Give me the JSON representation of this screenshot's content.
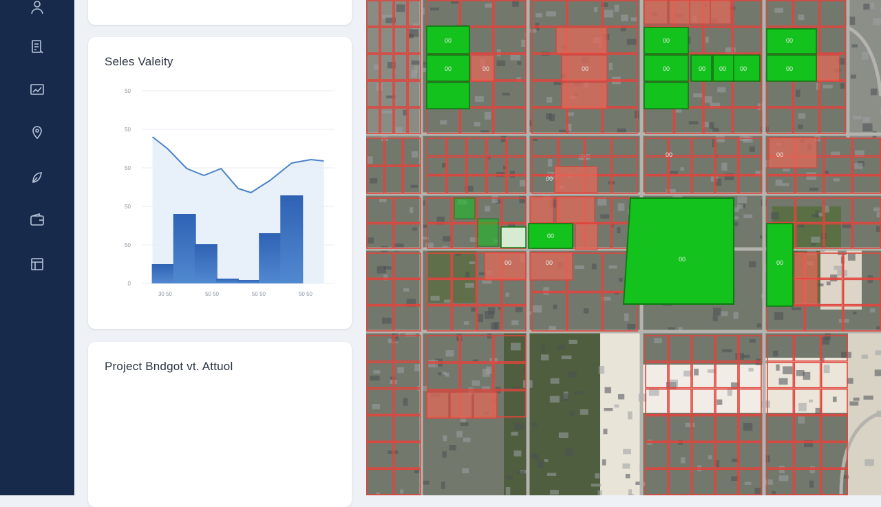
{
  "sidebar": {
    "items": [
      {
        "icon": "person-icon"
      },
      {
        "icon": "document-icon"
      },
      {
        "icon": "chart-icon"
      },
      {
        "icon": "pin-icon"
      },
      {
        "icon": "leaf-icon"
      },
      {
        "icon": "wallet-icon"
      },
      {
        "icon": "grid-icon"
      }
    ],
    "colors": {
      "background": "#172a4b",
      "icon": "#b8c6da"
    }
  },
  "cards": {
    "velocity": {
      "title": "Seles Valeity"
    },
    "budget": {
      "title": "Project Bndgot vt. Attuol"
    }
  },
  "chart_data": {
    "type": "bar",
    "title": "Seles Valeity",
    "y_tick_labels": [
      "0",
      "50",
      "50",
      "50",
      "50",
      "50"
    ],
    "x_tick_labels": [
      "30 50",
      "50 50",
      "50 50",
      "50 50"
    ],
    "bars": [
      {
        "x": 1,
        "value": 28
      },
      {
        "x": 2,
        "value": 101
      },
      {
        "x": 3,
        "value": 57
      },
      {
        "x": 4,
        "value": 7
      },
      {
        "x": 5,
        "value": 5
      },
      {
        "x": 6,
        "value": 73
      },
      {
        "x": 7,
        "value": 128
      }
    ],
    "line": [
      {
        "x": 0.5,
        "value": 213
      },
      {
        "x": 1.2,
        "value": 196
      },
      {
        "x": 2.1,
        "value": 167
      },
      {
        "x": 2.9,
        "value": 157
      },
      {
        "x": 3.7,
        "value": 167
      },
      {
        "x": 4.5,
        "value": 138
      },
      {
        "x": 5.1,
        "value": 132
      },
      {
        "x": 6.0,
        "value": 150
      },
      {
        "x": 7.0,
        "value": 175
      },
      {
        "x": 7.9,
        "value": 180
      },
      {
        "x": 8.5,
        "value": 178
      }
    ],
    "ylim": [
      0,
      280
    ],
    "xlim": [
      0,
      9
    ],
    "colors": {
      "bar": "#3a6fbd",
      "line": "#4a82c8",
      "area": "#e6eefa",
      "grid": "#e7ebf1"
    }
  },
  "map": {
    "parcel_labels": [
      "00",
      "00",
      "00",
      "00",
      "00",
      "00",
      "00",
      "00",
      "00",
      "00",
      "00",
      "00",
      "00",
      "00",
      "00",
      "00",
      "00",
      "00",
      "00"
    ],
    "colors": {
      "green": "#14c21e",
      "red": "#e0453d",
      "red_fill": "#e26a5a",
      "road": "#b5b3ad"
    }
  }
}
